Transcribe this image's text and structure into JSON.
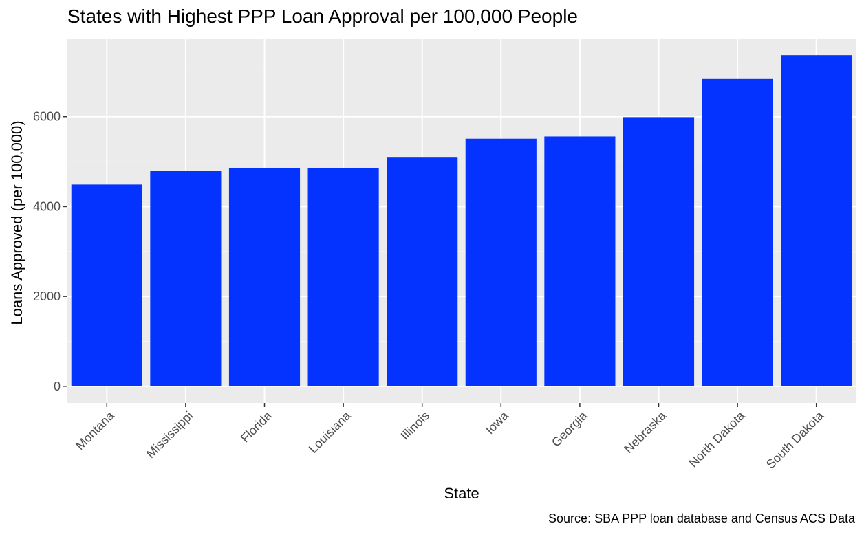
{
  "chart_data": {
    "type": "bar",
    "title": "States with Highest PPP Loan Approval per 100,000 People",
    "xlabel": "State",
    "ylabel": "Loans Approved (per 100,000)",
    "caption": "Source: SBA PPP loan database and Census ACS Data",
    "categories": [
      "Montana",
      "Mississippi",
      "Florida",
      "Louisiana",
      "Illinois",
      "Iowa",
      "Georgia",
      "Nebraska",
      "North Dakota",
      "South Dakota"
    ],
    "values": [
      4490,
      4790,
      4850,
      4850,
      5090,
      5510,
      5560,
      5990,
      6840,
      7370
    ],
    "yticks": [
      0,
      2000,
      4000,
      6000
    ],
    "ytick_labels": [
      "0",
      "2000",
      "4000",
      "6000"
    ],
    "ylim": [
      -370,
      7740
    ],
    "grid": true,
    "legend": "none",
    "colors": {
      "bar": "#0433ff",
      "panel": "#ebebeb",
      "grid_major": "#ffffff",
      "grid_minor": "#f5f5f5",
      "axis_text": "#4d4d4d",
      "text": "#000000"
    }
  }
}
